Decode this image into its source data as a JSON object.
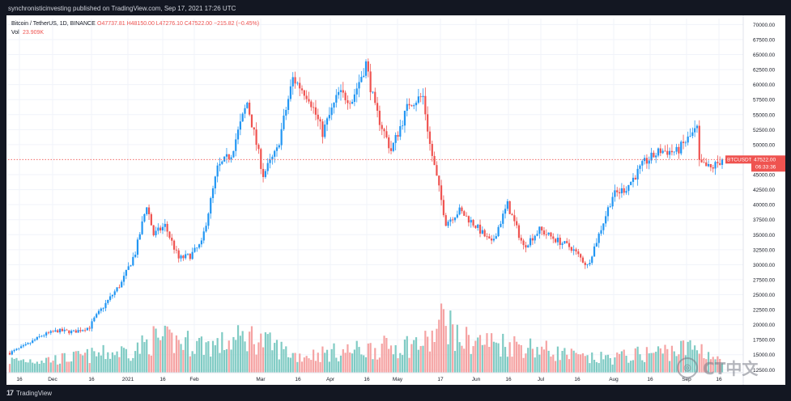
{
  "publisher": "synchronisticinvesting published on TradingView.com, Sep 17, 2021 17:26 UTC",
  "footer": {
    "brand": "TradingView"
  },
  "watermark": {
    "text": "CT中文"
  },
  "legend": {
    "symbol": "Bitcoin / TetherUS, 1D, BINANCE",
    "ohlc": "O47737.81 H48150.00 L47276.10 C47522.00 −215.82 (−0.45%)",
    "volume_label": "Vol",
    "volume_value": "23.909K"
  },
  "price_tag": {
    "symbol": "BTCUSDT",
    "price": "47522.00",
    "countdown": "06:33:36"
  },
  "colors": {
    "up": "#2196f3",
    "down": "#ef5350",
    "vol_up": "#80cbc4",
    "vol_down": "#f5a3a3",
    "grid": "#f0f3fa",
    "text": "#131722"
  },
  "chart_data": {
    "type": "candlestick",
    "x_tick_labels": [
      "16",
      "Dec",
      "16",
      "2021",
      "16",
      "Feb",
      "Mar",
      "16",
      "Apr",
      "16",
      "May",
      "17",
      "Jun",
      "16",
      "Jul",
      "16",
      "Aug",
      "16",
      "Sep",
      "16"
    ],
    "y_tick_labels": [
      "70000.00",
      "67500.00",
      "65000.00",
      "62500.00",
      "60000.00",
      "57500.00",
      "55000.00",
      "52500.00",
      "50000.00",
      "45000.00",
      "42500.00",
      "40000.00",
      "37500.00",
      "35000.00",
      "32500.00",
      "30000.00",
      "27500.00",
      "25000.00",
      "22500.00",
      "20000.00",
      "17500.00",
      "15000.00",
      "12500.00"
    ],
    "ylim": [
      12000,
      71000
    ],
    "last_price": 47522,
    "x_range": [
      "2020-11-09",
      "2021-09-17"
    ],
    "close_path": [
      [
        "2020-11-09",
        15300
      ],
      [
        "2020-11-16",
        16500
      ],
      [
        "2020-11-23",
        18200
      ],
      [
        "2020-11-30",
        19000
      ],
      [
        "2020-12-07",
        18800
      ],
      [
        "2020-12-14",
        19600
      ],
      [
        "2020-12-16",
        21000
      ],
      [
        "2020-12-21",
        23500
      ],
      [
        "2020-12-28",
        27000
      ],
      [
        "2021-01-03",
        32000
      ],
      [
        "2021-01-08",
        40000
      ],
      [
        "2021-01-11",
        35000
      ],
      [
        "2021-01-16",
        36500
      ],
      [
        "2021-01-22",
        31000
      ],
      [
        "2021-01-27",
        31500
      ],
      [
        "2021-02-01",
        33500
      ],
      [
        "2021-02-08",
        46000
      ],
      [
        "2021-02-14",
        48500
      ],
      [
        "2021-02-21",
        57000
      ],
      [
        "2021-02-28",
        45000
      ],
      [
        "2021-03-06",
        49000
      ],
      [
        "2021-03-13",
        61000
      ],
      [
        "2021-03-20",
        58000
      ],
      [
        "2021-03-26",
        52000
      ],
      [
        "2021-04-02",
        58500
      ],
      [
        "2021-04-08",
        57500
      ],
      [
        "2021-04-14",
        63500
      ],
      [
        "2021-04-18",
        56000
      ],
      [
        "2021-04-25",
        49000
      ],
      [
        "2021-05-03",
        57000
      ],
      [
        "2021-05-09",
        58000
      ],
      [
        "2021-05-12",
        50000
      ],
      [
        "2021-05-19",
        37000
      ],
      [
        "2021-05-25",
        39000
      ],
      [
        "2021-06-01",
        36500
      ],
      [
        "2021-06-08",
        33500
      ],
      [
        "2021-06-15",
        40000
      ],
      [
        "2021-06-22",
        33000
      ],
      [
        "2021-06-29",
        35800
      ],
      [
        "2021-07-06",
        34200
      ],
      [
        "2021-07-13",
        32800
      ],
      [
        "2021-07-20",
        29800
      ],
      [
        "2021-07-25",
        35000
      ],
      [
        "2021-07-31",
        41500
      ],
      [
        "2021-08-06",
        42800
      ],
      [
        "2021-08-14",
        47000
      ],
      [
        "2021-08-21",
        49000
      ],
      [
        "2021-08-28",
        48800
      ],
      [
        "2021-09-06",
        52600
      ],
      [
        "2021-09-07",
        46800
      ],
      [
        "2021-09-12",
        46000
      ],
      [
        "2021-09-17",
        47522
      ]
    ],
    "volume_path": [
      [
        "2020-11-09",
        8
      ],
      [
        "2020-12-01",
        9
      ],
      [
        "2021-01-03",
        15
      ],
      [
        "2021-01-11",
        22
      ],
      [
        "2021-02-08",
        18
      ],
      [
        "2021-02-22",
        24
      ],
      [
        "2021-03-15",
        11
      ],
      [
        "2021-04-18",
        16
      ],
      [
        "2021-05-12",
        20
      ],
      [
        "2021-05-19",
        38
      ],
      [
        "2021-05-24",
        22
      ],
      [
        "2021-06-22",
        18
      ],
      [
        "2021-07-20",
        9
      ],
      [
        "2021-08-01",
        10
      ],
      [
        "2021-09-07",
        17
      ],
      [
        "2021-09-17",
        6
      ]
    ]
  }
}
